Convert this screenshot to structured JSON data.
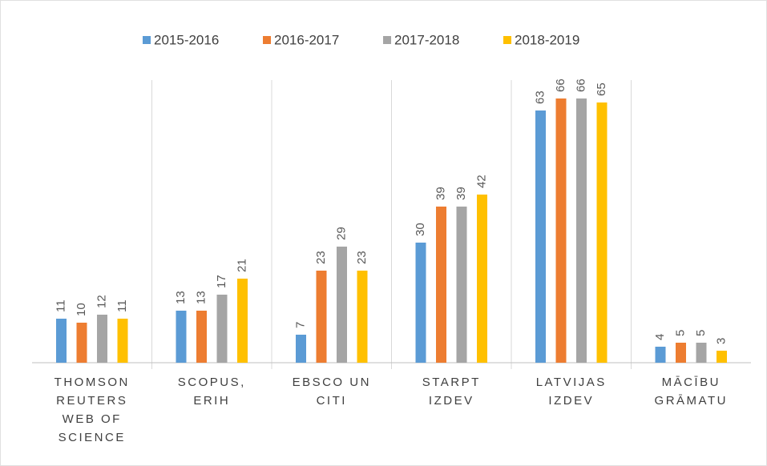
{
  "chart_data": {
    "type": "bar",
    "categories": [
      "THOMSON\nREUTERS\nWEB OF\nSCIENCE",
      "SCOPUS,\nERIH",
      "EBSCO UN\nCITI",
      "STARPT\nIZDEV",
      "LATVIJAS\nIZDEV",
      "MĀCĪBU\nGRĀMATU"
    ],
    "series": [
      {
        "name": "2015-2016",
        "color": "#5b9bd5",
        "values": [
          11,
          13,
          7,
          30,
          63,
          4
        ]
      },
      {
        "name": "2016-2017",
        "color": "#ed7d31",
        "values": [
          10,
          13,
          23,
          39,
          66,
          5
        ]
      },
      {
        "name": "2017-2018",
        "color": "#a5a5a5",
        "values": [
          12,
          17,
          29,
          39,
          66,
          5
        ]
      },
      {
        "name": "2018-2019",
        "color": "#ffc000",
        "values": [
          11,
          21,
          23,
          42,
          65,
          3
        ]
      }
    ],
    "ylim": [
      0,
      70
    ],
    "legend": "top"
  }
}
